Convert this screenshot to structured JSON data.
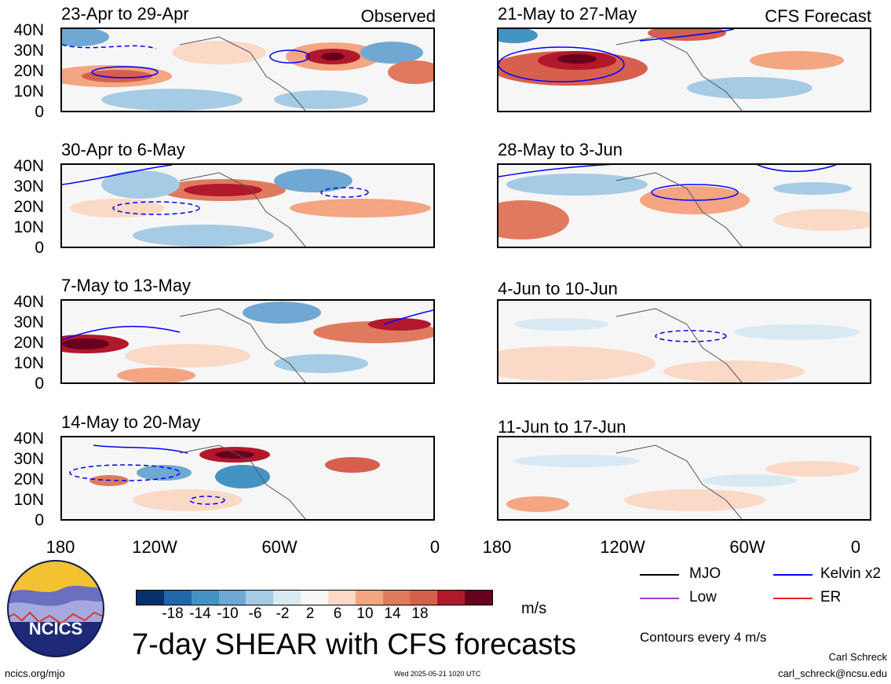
{
  "panels": {
    "left": [
      {
        "title": "23-Apr to 29-Apr",
        "tag": "Observed"
      },
      {
        "title": "30-Apr to 6-May",
        "tag": ""
      },
      {
        "title": "7-May to 13-May",
        "tag": ""
      },
      {
        "title": "14-May to 20-May",
        "tag": ""
      }
    ],
    "right": [
      {
        "title": "21-May to 27-May",
        "tag": "CFS Forecast"
      },
      {
        "title": "28-May to 3-Jun",
        "tag": ""
      },
      {
        "title": "4-Jun to 10-Jun",
        "tag": ""
      },
      {
        "title": "11-Jun to 17-Jun",
        "tag": ""
      }
    ]
  },
  "lat_labels": [
    "40N",
    "30N",
    "20N",
    "10N",
    "0"
  ],
  "lon_labels": [
    "180",
    "120W",
    "60W",
    "0"
  ],
  "colorbar": {
    "ticks": [
      "-18",
      "-14",
      "-10",
      "-6",
      "-2",
      "2",
      "6",
      "10",
      "14",
      "18"
    ],
    "colors": [
      "#08306b",
      "#2166ac",
      "#4393c3",
      "#6fa8d2",
      "#a6cbe4",
      "#d8e9f3",
      "#f7f7f7",
      "#fbd9c7",
      "#f4a582",
      "#e07a5f",
      "#d6604d",
      "#b2182b",
      "#67001f"
    ],
    "units": "m/s"
  },
  "legend": {
    "items": [
      {
        "label": "MJO",
        "color": "#000000"
      },
      {
        "label": "Kelvin x2",
        "color": "#0000ff"
      },
      {
        "label": "Low",
        "color": "#9a3bd6"
      },
      {
        "label": "ER",
        "color": "#e8201c"
      }
    ],
    "contour_note": "Contours every 4 m/s"
  },
  "logo_text": "NCICS",
  "main_title": "7-day SHEAR with CFS forecasts",
  "footer": {
    "url": "ncics.org/mjo",
    "timestamp": "Wed 2025-05-21 1020 UTC",
    "author": "Carl Schreck",
    "email": "carl_schreck@ncsu.edu"
  }
}
